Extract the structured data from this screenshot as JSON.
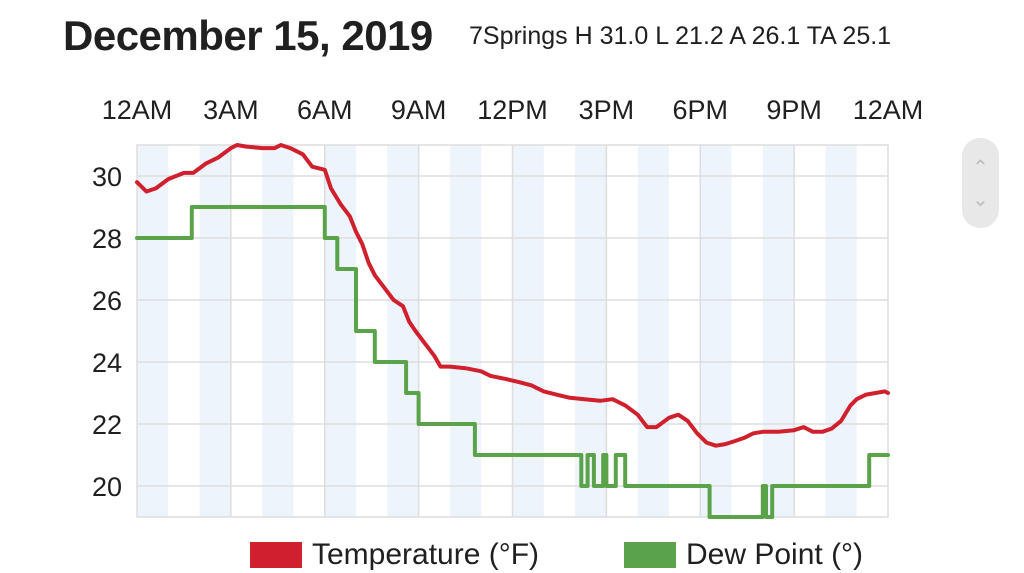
{
  "header": {
    "date": "December 15, 2019",
    "summary": "7Springs H 31.0 L 21.2 A 26.1 TA 25.1"
  },
  "colors": {
    "temperature": "#d0202d",
    "dew_point": "#5aa34a",
    "band": "#eef4fb",
    "grid": "#dddddd"
  },
  "icons": {
    "scroll_up": "chevron-up-icon",
    "scroll_down": "chevron-down-icon"
  },
  "chart_data": {
    "type": "line",
    "title": "",
    "x_ticks": [
      "12AM",
      "3AM",
      "6AM",
      "9AM",
      "12PM",
      "3PM",
      "6PM",
      "9PM",
      "12AM"
    ],
    "x_range_hours": [
      0,
      24
    ],
    "y_ticks": [
      "30",
      "28",
      "26",
      "24",
      "22",
      "20"
    ],
    "ylim": [
      19,
      31
    ],
    "grid": true,
    "legend_position": "bottom",
    "series": [
      {
        "name": "Temperature (°F)",
        "color": "#d0202d",
        "points": [
          [
            0,
            29.8
          ],
          [
            0.3,
            29.5
          ],
          [
            0.6,
            29.6
          ],
          [
            1.0,
            29.9
          ],
          [
            1.5,
            30.1
          ],
          [
            1.8,
            30.1
          ],
          [
            2.2,
            30.4
          ],
          [
            2.6,
            30.6
          ],
          [
            3.0,
            30.9
          ],
          [
            3.2,
            31.0
          ],
          [
            3.5,
            30.95
          ],
          [
            4.0,
            30.9
          ],
          [
            4.4,
            30.9
          ],
          [
            4.6,
            31.0
          ],
          [
            4.9,
            30.9
          ],
          [
            5.3,
            30.7
          ],
          [
            5.6,
            30.3
          ],
          [
            6.0,
            30.2
          ],
          [
            6.2,
            29.6
          ],
          [
            6.5,
            29.1
          ],
          [
            6.8,
            28.7
          ],
          [
            7.0,
            28.2
          ],
          [
            7.2,
            27.8
          ],
          [
            7.4,
            27.2
          ],
          [
            7.6,
            26.8
          ],
          [
            7.9,
            26.4
          ],
          [
            8.2,
            26.0
          ],
          [
            8.5,
            25.8
          ],
          [
            8.7,
            25.3
          ],
          [
            8.9,
            25.0
          ],
          [
            9.2,
            24.6
          ],
          [
            9.5,
            24.2
          ],
          [
            9.7,
            23.85
          ],
          [
            10.0,
            23.85
          ],
          [
            10.5,
            23.8
          ],
          [
            11.0,
            23.7
          ],
          [
            11.3,
            23.55
          ],
          [
            11.8,
            23.45
          ],
          [
            12.2,
            23.35
          ],
          [
            12.6,
            23.25
          ],
          [
            13.0,
            23.05
          ],
          [
            13.4,
            22.95
          ],
          [
            13.8,
            22.85
          ],
          [
            14.3,
            22.8
          ],
          [
            14.8,
            22.75
          ],
          [
            15.2,
            22.8
          ],
          [
            15.6,
            22.6
          ],
          [
            16.0,
            22.3
          ],
          [
            16.3,
            21.9
          ],
          [
            16.6,
            21.9
          ],
          [
            17.0,
            22.2
          ],
          [
            17.3,
            22.3
          ],
          [
            17.6,
            22.1
          ],
          [
            17.9,
            21.7
          ],
          [
            18.2,
            21.4
          ],
          [
            18.5,
            21.3
          ],
          [
            18.8,
            21.35
          ],
          [
            19.1,
            21.45
          ],
          [
            19.4,
            21.55
          ],
          [
            19.7,
            21.7
          ],
          [
            20.0,
            21.75
          ],
          [
            20.5,
            21.75
          ],
          [
            21.0,
            21.8
          ],
          [
            21.3,
            21.9
          ],
          [
            21.6,
            21.75
          ],
          [
            21.9,
            21.75
          ],
          [
            22.2,
            21.85
          ],
          [
            22.5,
            22.1
          ],
          [
            22.8,
            22.6
          ],
          [
            23.0,
            22.8
          ],
          [
            23.3,
            22.95
          ],
          [
            23.6,
            23.0
          ],
          [
            23.9,
            23.05
          ],
          [
            24.0,
            23.0
          ]
        ]
      },
      {
        "name": "Dew Point (°)",
        "color": "#5aa34a",
        "points": [
          [
            0,
            28
          ],
          [
            1.75,
            28
          ],
          [
            1.75,
            29
          ],
          [
            6.0,
            29
          ],
          [
            6.0,
            28
          ],
          [
            6.4,
            28
          ],
          [
            6.4,
            27
          ],
          [
            7.0,
            27
          ],
          [
            7.0,
            25
          ],
          [
            7.6,
            25
          ],
          [
            7.6,
            24
          ],
          [
            8.6,
            24
          ],
          [
            8.6,
            23
          ],
          [
            9.0,
            23
          ],
          [
            9.0,
            22
          ],
          [
            10.8,
            22
          ],
          [
            10.8,
            21
          ],
          [
            14.2,
            21
          ],
          [
            14.2,
            20
          ],
          [
            14.4,
            20
          ],
          [
            14.4,
            21
          ],
          [
            14.6,
            21
          ],
          [
            14.6,
            20
          ],
          [
            14.9,
            20
          ],
          [
            14.9,
            21
          ],
          [
            15.0,
            21
          ],
          [
            15.0,
            20
          ],
          [
            15.3,
            20
          ],
          [
            15.3,
            21
          ],
          [
            15.6,
            21
          ],
          [
            15.6,
            20
          ],
          [
            18.3,
            20
          ],
          [
            18.3,
            19
          ],
          [
            20.0,
            19
          ],
          [
            20.0,
            20
          ],
          [
            20.1,
            20
          ],
          [
            20.1,
            19
          ],
          [
            20.3,
            19
          ],
          [
            20.3,
            20
          ],
          [
            23.4,
            20
          ],
          [
            23.4,
            21
          ],
          [
            24.0,
            21
          ]
        ]
      }
    ]
  }
}
